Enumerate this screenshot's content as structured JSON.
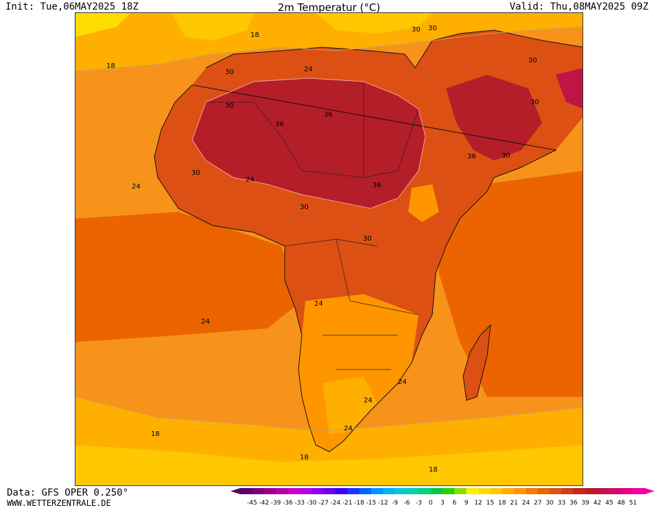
{
  "header": {
    "init": "Init: Tue,06MAY2025 18Z",
    "title": "2m Temperatur (°C)",
    "valid": "Valid: Thu,08MAY2025 09Z"
  },
  "footer": {
    "data_source": "Data: GFS OPER 0.250°",
    "website": "WWW.WETTERZENTRALE.DE"
  },
  "map": {
    "region": "Africa",
    "contour_labels": [
      {
        "text": "18"
      },
      {
        "text": "18"
      },
      {
        "text": "24"
      },
      {
        "text": "30"
      },
      {
        "text": "24"
      },
      {
        "text": "30"
      },
      {
        "text": "36"
      },
      {
        "text": "36"
      },
      {
        "text": "30"
      },
      {
        "text": "24"
      },
      {
        "text": "30"
      },
      {
        "text": "36"
      },
      {
        "text": "30"
      },
      {
        "text": "30"
      },
      {
        "text": "30"
      },
      {
        "text": "36"
      },
      {
        "text": "30"
      },
      {
        "text": "24"
      },
      {
        "text": "24"
      },
      {
        "text": "24"
      },
      {
        "text": "24"
      },
      {
        "text": "24"
      },
      {
        "text": "18"
      },
      {
        "text": "18"
      },
      {
        "text": "18"
      },
      {
        "text": "30"
      },
      {
        "text": "30"
      }
    ]
  },
  "colorbar": {
    "ticks": [
      "-45",
      "-42",
      "-39",
      "-36",
      "-33",
      "-30",
      "-27",
      "-24",
      "-21",
      "-18",
      "-15",
      "-12",
      "-9",
      "-6",
      "-3",
      "0",
      "3",
      "6",
      "9",
      "12",
      "15",
      "18",
      "21",
      "24",
      "27",
      "30",
      "33",
      "36",
      "39",
      "42",
      "45",
      "48",
      "51"
    ],
    "colors": [
      "#5a006e",
      "#7a007e",
      "#95008e",
      "#b000a8",
      "#c800c8",
      "#b400e0",
      "#8c00f0",
      "#6400f0",
      "#3c00f0",
      "#1e32ff",
      "#0064ff",
      "#0096ff",
      "#00b4f0",
      "#00c8d2",
      "#00d2aa",
      "#00d278",
      "#00c846",
      "#28d200",
      "#8cdc00",
      "#fff000",
      "#ffdc00",
      "#ffc800",
      "#ffaf00",
      "#ff9600",
      "#f57800",
      "#eb6400",
      "#dc5014",
      "#d23c14",
      "#c3281e",
      "#b41e28",
      "#be1446",
      "#d20a6e",
      "#e6008c",
      "#f000aa"
    ]
  }
}
